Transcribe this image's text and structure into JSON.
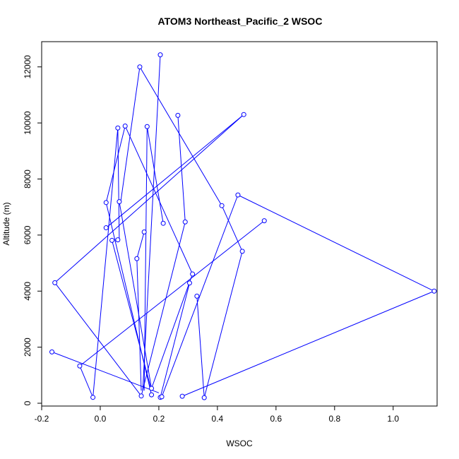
{
  "chart_data": {
    "type": "line",
    "title": "ATOM3 Northeast_Pacific_2 WSOC",
    "xlabel": "WSOC",
    "ylabel": "Altitude (m)",
    "xlim": [
      -0.2,
      1.15
    ],
    "ylim": [
      -100,
      12900
    ],
    "x_ticks": [
      -0.2,
      0.0,
      0.2,
      0.4,
      0.6,
      0.8,
      1.0
    ],
    "x_tick_labels": [
      "-0.2",
      "0.0",
      "0.2",
      "0.4",
      "0.6",
      "0.8",
      "1.0"
    ],
    "y_ticks": [
      0,
      2000,
      4000,
      6000,
      8000,
      10000,
      12000
    ],
    "y_tick_labels": [
      "0",
      "2000",
      "4000",
      "6000",
      "8000",
      "10000",
      "12000"
    ],
    "grid": false,
    "legend": "none",
    "series_color": "#0000ff",
    "marker": "open-circle",
    "points": [
      {
        "x": 0.205,
        "y": 12430
      },
      {
        "x": 0.135,
        "y": 12000
      },
      {
        "x": 0.49,
        "y": 10300
      },
      {
        "x": 0.265,
        "y": 10270
      },
      {
        "x": 0.085,
        "y": 9890
      },
      {
        "x": 0.16,
        "y": 9870
      },
      {
        "x": 0.06,
        "y": 9820
      },
      {
        "x": 0.47,
        "y": 7430
      },
      {
        "x": 0.02,
        "y": 7160
      },
      {
        "x": 0.065,
        "y": 7190
      },
      {
        "x": 0.415,
        "y": 7050
      },
      {
        "x": 0.56,
        "y": 6510
      },
      {
        "x": 0.29,
        "y": 6470
      },
      {
        "x": 0.215,
        "y": 6420
      },
      {
        "x": 0.02,
        "y": 6260
      },
      {
        "x": 0.15,
        "y": 6110
      },
      {
        "x": 0.04,
        "y": 5810
      },
      {
        "x": 0.06,
        "y": 5830
      },
      {
        "x": 0.485,
        "y": 5420
      },
      {
        "x": 0.125,
        "y": 5160
      },
      {
        "x": 0.315,
        "y": 4610
      },
      {
        "x": -0.155,
        "y": 4300
      },
      {
        "x": 0.305,
        "y": 4290
      },
      {
        "x": 1.14,
        "y": 4000
      },
      {
        "x": 0.33,
        "y": 3820
      },
      {
        "x": -0.165,
        "y": 1830
      },
      {
        "x": -0.07,
        "y": 1330
      },
      {
        "x": 0.175,
        "y": 530
      },
      {
        "x": 0.175,
        "y": 300
      },
      {
        "x": 0.14,
        "y": 260
      },
      {
        "x": 0.28,
        "y": 250
      },
      {
        "x": -0.025,
        "y": 210
      },
      {
        "x": 0.205,
        "y": 210
      },
      {
        "x": 0.21,
        "y": 230
      },
      {
        "x": 0.355,
        "y": 200
      }
    ],
    "segments": [
      [
        0.205,
        12430,
        0.145,
        450
      ],
      [
        0.135,
        12000,
        0.415,
        7050
      ],
      [
        0.415,
        7050,
        0.485,
        5420
      ],
      [
        0.485,
        5420,
        0.355,
        200
      ],
      [
        0.49,
        10300,
        0.02,
        6260
      ],
      [
        0.49,
        10300,
        -0.155,
        4300
      ],
      [
        -0.155,
        4300,
        0.14,
        260
      ],
      [
        0.265,
        10270,
        0.29,
        6470
      ],
      [
        0.29,
        6470,
        0.14,
        260
      ],
      [
        0.085,
        9890,
        0.02,
        7160
      ],
      [
        0.085,
        9890,
        0.315,
        4610
      ],
      [
        0.16,
        9870,
        0.215,
        6420
      ],
      [
        0.16,
        9870,
        0.15,
        450
      ],
      [
        0.06,
        9820,
        0.065,
        5830
      ],
      [
        0.065,
        7190,
        0.175,
        530
      ],
      [
        0.02,
        7160,
        0.175,
        300
      ],
      [
        0.47,
        7430,
        1.14,
        4000
      ],
      [
        0.47,
        7430,
        0.21,
        230
      ],
      [
        0.56,
        6510,
        -0.07,
        1330
      ],
      [
        -0.07,
        1330,
        -0.025,
        210
      ],
      [
        0.04,
        5810,
        0.175,
        450
      ],
      [
        0.15,
        6110,
        0.125,
        5160
      ],
      [
        0.125,
        5160,
        0.14,
        450
      ],
      [
        0.315,
        4610,
        0.175,
        530
      ],
      [
        0.305,
        4290,
        0.205,
        210
      ],
      [
        0.33,
        3820,
        0.355,
        200
      ],
      [
        1.14,
        4000,
        0.28,
        250
      ],
      [
        -0.165,
        1830,
        0.2,
        370
      ],
      [
        0.06,
        9820,
        -0.025,
        210
      ],
      [
        0.135,
        12000,
        0.07,
        7200
      ]
    ]
  }
}
